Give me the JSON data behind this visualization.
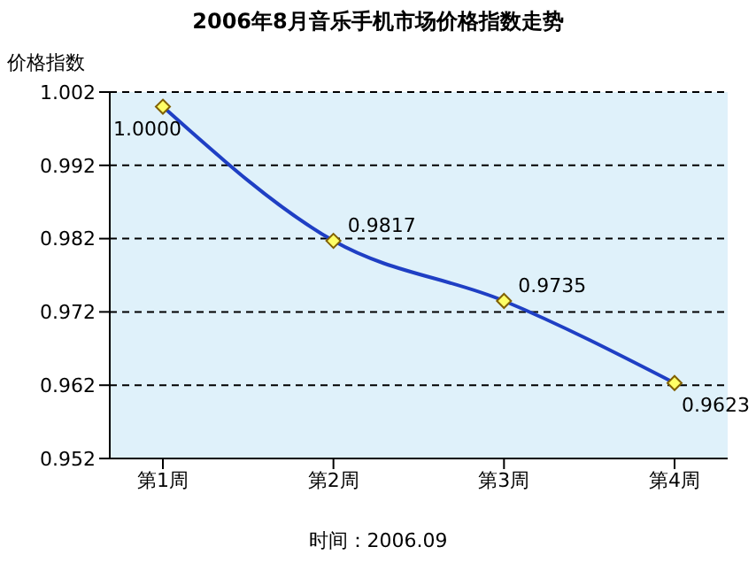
{
  "chart_data": {
    "type": "line",
    "title": "2006年8月音乐手机市场价格指数走势",
    "ylabel": "价格指数",
    "annotations": [
      "时间：2006.09"
    ],
    "categories": [
      "第1周",
      "第2周",
      "第3周",
      "第4周"
    ],
    "series": [
      {
        "color": "#1f3fc4",
        "values": [
          1.0,
          0.9817,
          0.9735,
          0.9623
        ],
        "value_labels": [
          "1.0000",
          "0.9817",
          "0.9735",
          "0.9623"
        ]
      }
    ],
    "ylim": [
      0.952,
      1.002
    ],
    "yticks": [
      0.952,
      0.962,
      0.972,
      0.982,
      0.992,
      1.002
    ],
    "grid": "y",
    "marker": "diamond",
    "line_style": "solid"
  }
}
